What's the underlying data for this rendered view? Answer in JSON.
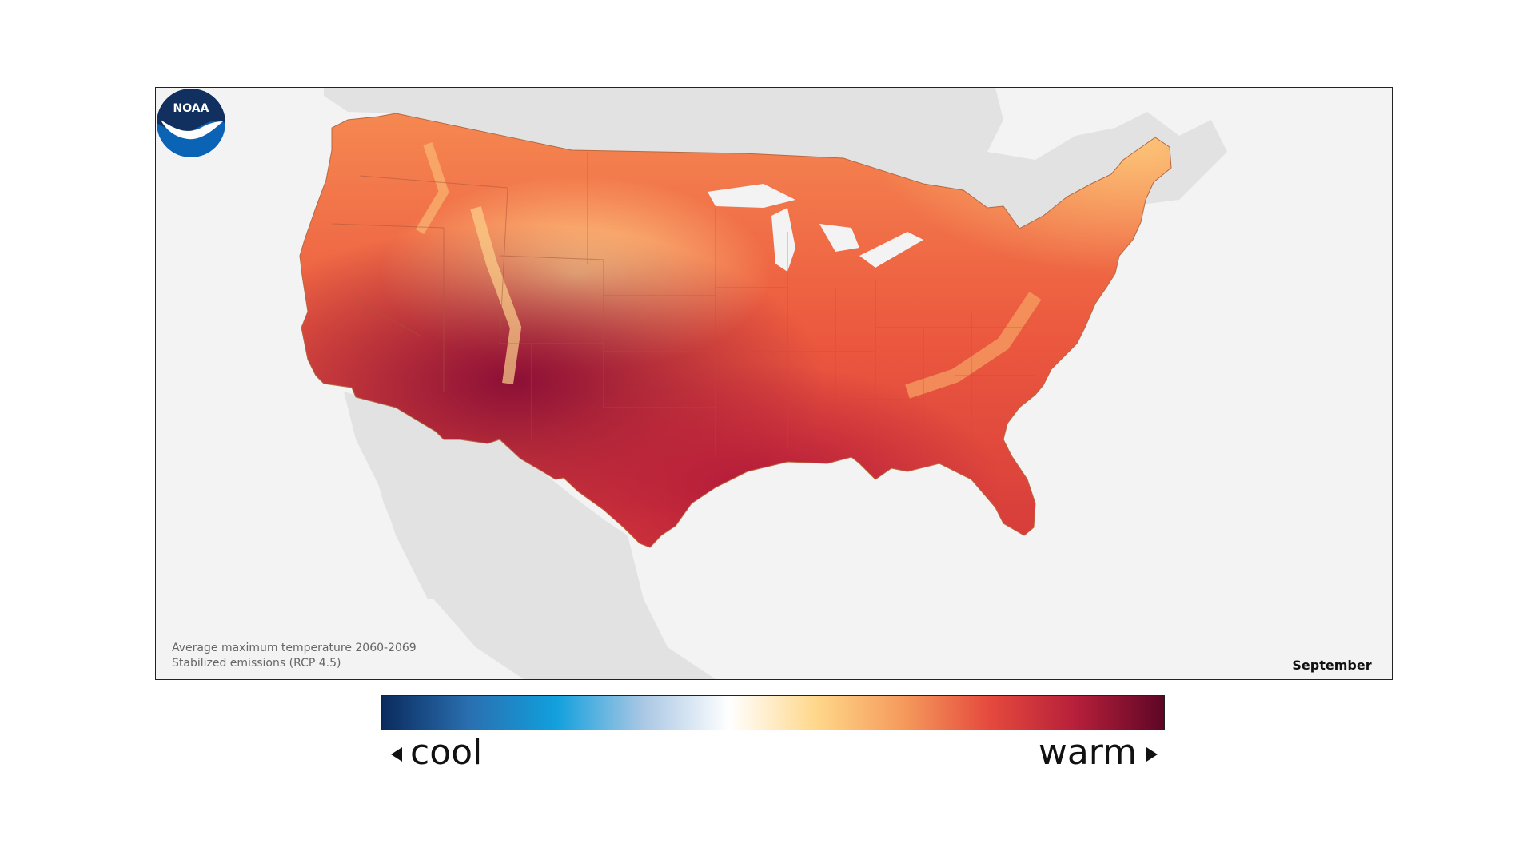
{
  "map": {
    "caption_line1": "Average maximum temperature 2060-2069",
    "caption_line2": "Stabilized emissions (RCP 4.5)",
    "month": "September",
    "logo_text": "NOAA"
  },
  "legend": {
    "cool_label": "cool",
    "warm_label": "warm",
    "stops": [
      "#0a2b5e",
      "#2a6fb0",
      "#11a0dd",
      "#a9c7e4",
      "#ffffff",
      "#ffd78a",
      "#f59a5c",
      "#e5493d",
      "#b51f3a",
      "#5e0626"
    ]
  },
  "colors": {
    "land_background": "#e2e2e2",
    "water_background": "#f3f3f3",
    "state_borders": "#a8573d"
  }
}
